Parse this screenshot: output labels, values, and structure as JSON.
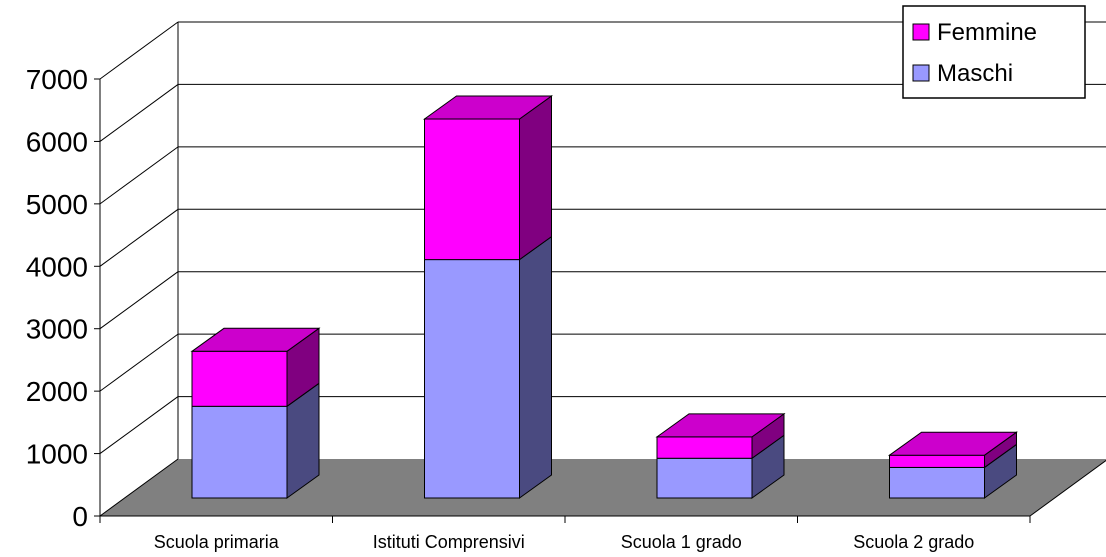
{
  "chart_data": {
    "type": "bar",
    "stacked": true,
    "style": "3d",
    "categories": [
      "Scuola primaria",
      "Istituti Comprensivi",
      "Scuola 1 grado",
      "Scuola 2 grado"
    ],
    "series": [
      {
        "name": "Maschi",
        "values": [
          1500,
          3900,
          650,
          500
        ],
        "color": "#9999FF",
        "side_color": "#4A4A80"
      },
      {
        "name": "Femmine",
        "values": [
          900,
          2300,
          350,
          200
        ],
        "color": "#FF00FF",
        "side_color": "#800080",
        "top_color": "#CC00CC"
      }
    ],
    "ylim": [
      0,
      7000
    ],
    "yticks": [
      "0",
      "1000",
      "2000",
      "3000",
      "4000",
      "5000",
      "6000",
      "7000"
    ],
    "grid": true,
    "legend": "top-right",
    "colors": {
      "floor": "#808080",
      "grid": "#000000",
      "wall": "#ffffff"
    }
  }
}
